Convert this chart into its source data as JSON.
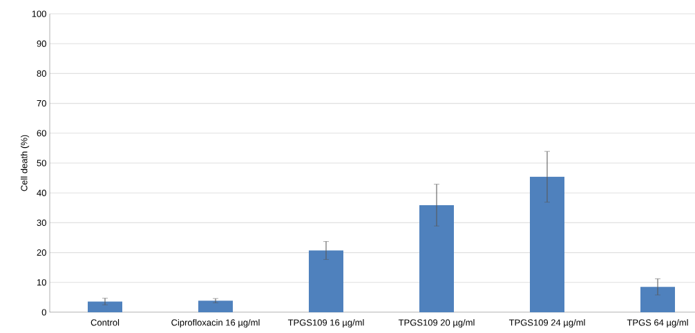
{
  "chart_data": {
    "type": "bar",
    "ylabel": "Cell death (%)",
    "categories": [
      "Control",
      "Ciprofloxacin 16 µg/ml",
      "TPGS109 16 µg/ml",
      "TPGS109 20 µg/ml",
      "TPGS109 24 µg/ml",
      "TPGS 64 µg/ml"
    ],
    "values": [
      3.6,
      3.9,
      20.7,
      35.9,
      45.4,
      8.5
    ],
    "errors": [
      1.1,
      0.7,
      3,
      7,
      8.5,
      2.7
    ],
    "color": "#4f81bd",
    "ylim": [
      0,
      100
    ],
    "yticks": [
      0,
      10,
      20,
      30,
      40,
      50,
      60,
      70,
      80,
      90,
      100
    ],
    "grid": "y"
  }
}
